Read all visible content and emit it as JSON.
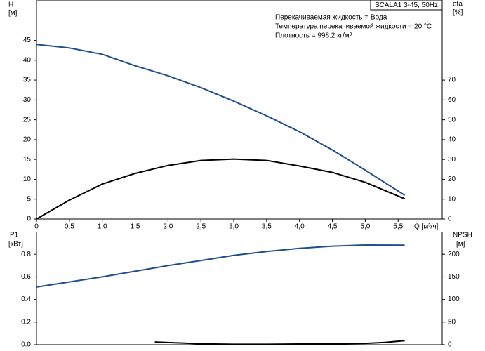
{
  "chart_data": [
    {
      "type": "line",
      "title": "SCALA1 3-45, 50Hz",
      "annotations": [
        "Перекачиваемая жидкость = Вода",
        "Температура перекачиваемой жидкости = 20 °C",
        "Плотность = 998.2 кг/м³"
      ],
      "ylabel": "H",
      "ylabel_unit": "[м]",
      "y2label": "eta",
      "y2label_unit": "[%]",
      "xlabel": "Q [м³/ч]",
      "xlim": [
        0,
        6.17
      ],
      "ylim": [
        0,
        55
      ],
      "y2lim": [
        0,
        110
      ],
      "xticks": [
        0,
        {
          "value": 0.5,
          "label": "0,5"
        },
        {
          "value": 1,
          "label": "1,0"
        },
        {
          "value": 1.5,
          "label": "1,5"
        },
        {
          "value": 2,
          "label": "2,0"
        },
        {
          "value": 2.5,
          "label": "2,5"
        },
        {
          "value": 3,
          "label": "3,0"
        },
        {
          "value": 3.5,
          "label": "3,5"
        },
        {
          "value": 4,
          "label": "4,0"
        },
        {
          "value": 4.5,
          "label": "4,5"
        },
        {
          "value": 5,
          "label": "5,0"
        },
        {
          "value": 5.5,
          "label": "5,5"
        }
      ],
      "yticks": [
        0,
        5,
        10,
        15,
        20,
        25,
        30,
        35,
        40,
        45
      ],
      "y2ticks": [
        0,
        10,
        20,
        30,
        40,
        50,
        60,
        70
      ],
      "series": [
        {
          "color": "#1f4e8c",
          "axis": "y",
          "x": [
            0,
            0.5,
            1,
            1.5,
            2,
            2.5,
            3,
            3.5,
            4,
            4.5,
            5,
            5.6
          ],
          "values": [
            44,
            43.1,
            41.5,
            38.6,
            36.1,
            33.1,
            29.7,
            26.0,
            22.0,
            17.4,
            12.3,
            6
          ]
        },
        {
          "color": "#000000",
          "axis": "y2",
          "x": [
            0,
            0.5,
            1,
            1.5,
            2,
            2.5,
            3,
            3.5,
            4,
            4.5,
            5,
            5.6
          ],
          "values": [
            0,
            9.5,
            17.6,
            23,
            27,
            29.5,
            30.2,
            29.5,
            26.7,
            23.5,
            18.5,
            10.2
          ]
        }
      ]
    },
    {
      "type": "line",
      "ylabel": "P1",
      "ylabel_unit": "[кВт]",
      "y2label": "NPSH",
      "y2label_unit": "[м]",
      "xlim": [
        0,
        6.17
      ],
      "ylim": [
        0,
        1
      ],
      "y2lim": [
        0,
        250
      ],
      "yticks": [
        {
          "value": 0,
          "label": "0.0"
        },
        0.2,
        0.4,
        0.6,
        0.8
      ],
      "y2ticks": [
        0,
        50,
        100,
        150,
        200
      ],
      "series": [
        {
          "color": "#1f4e8c",
          "axis": "y",
          "x": [
            0,
            0.5,
            1,
            1.5,
            2,
            2.5,
            3,
            3.5,
            4,
            4.5,
            5,
            5.6
          ],
          "values": [
            0.51,
            0.555,
            0.6,
            0.65,
            0.7,
            0.745,
            0.79,
            0.825,
            0.853,
            0.872,
            0.882,
            0.88
          ]
        },
        {
          "color": "#000000",
          "axis": "y2",
          "x": [
            1.8,
            2.5,
            3,
            3.5,
            4,
            4.5,
            5,
            5.3,
            5.6
          ],
          "values": [
            6,
            2,
            1,
            1,
            1.5,
            2,
            3,
            5,
            9
          ]
        }
      ]
    }
  ]
}
